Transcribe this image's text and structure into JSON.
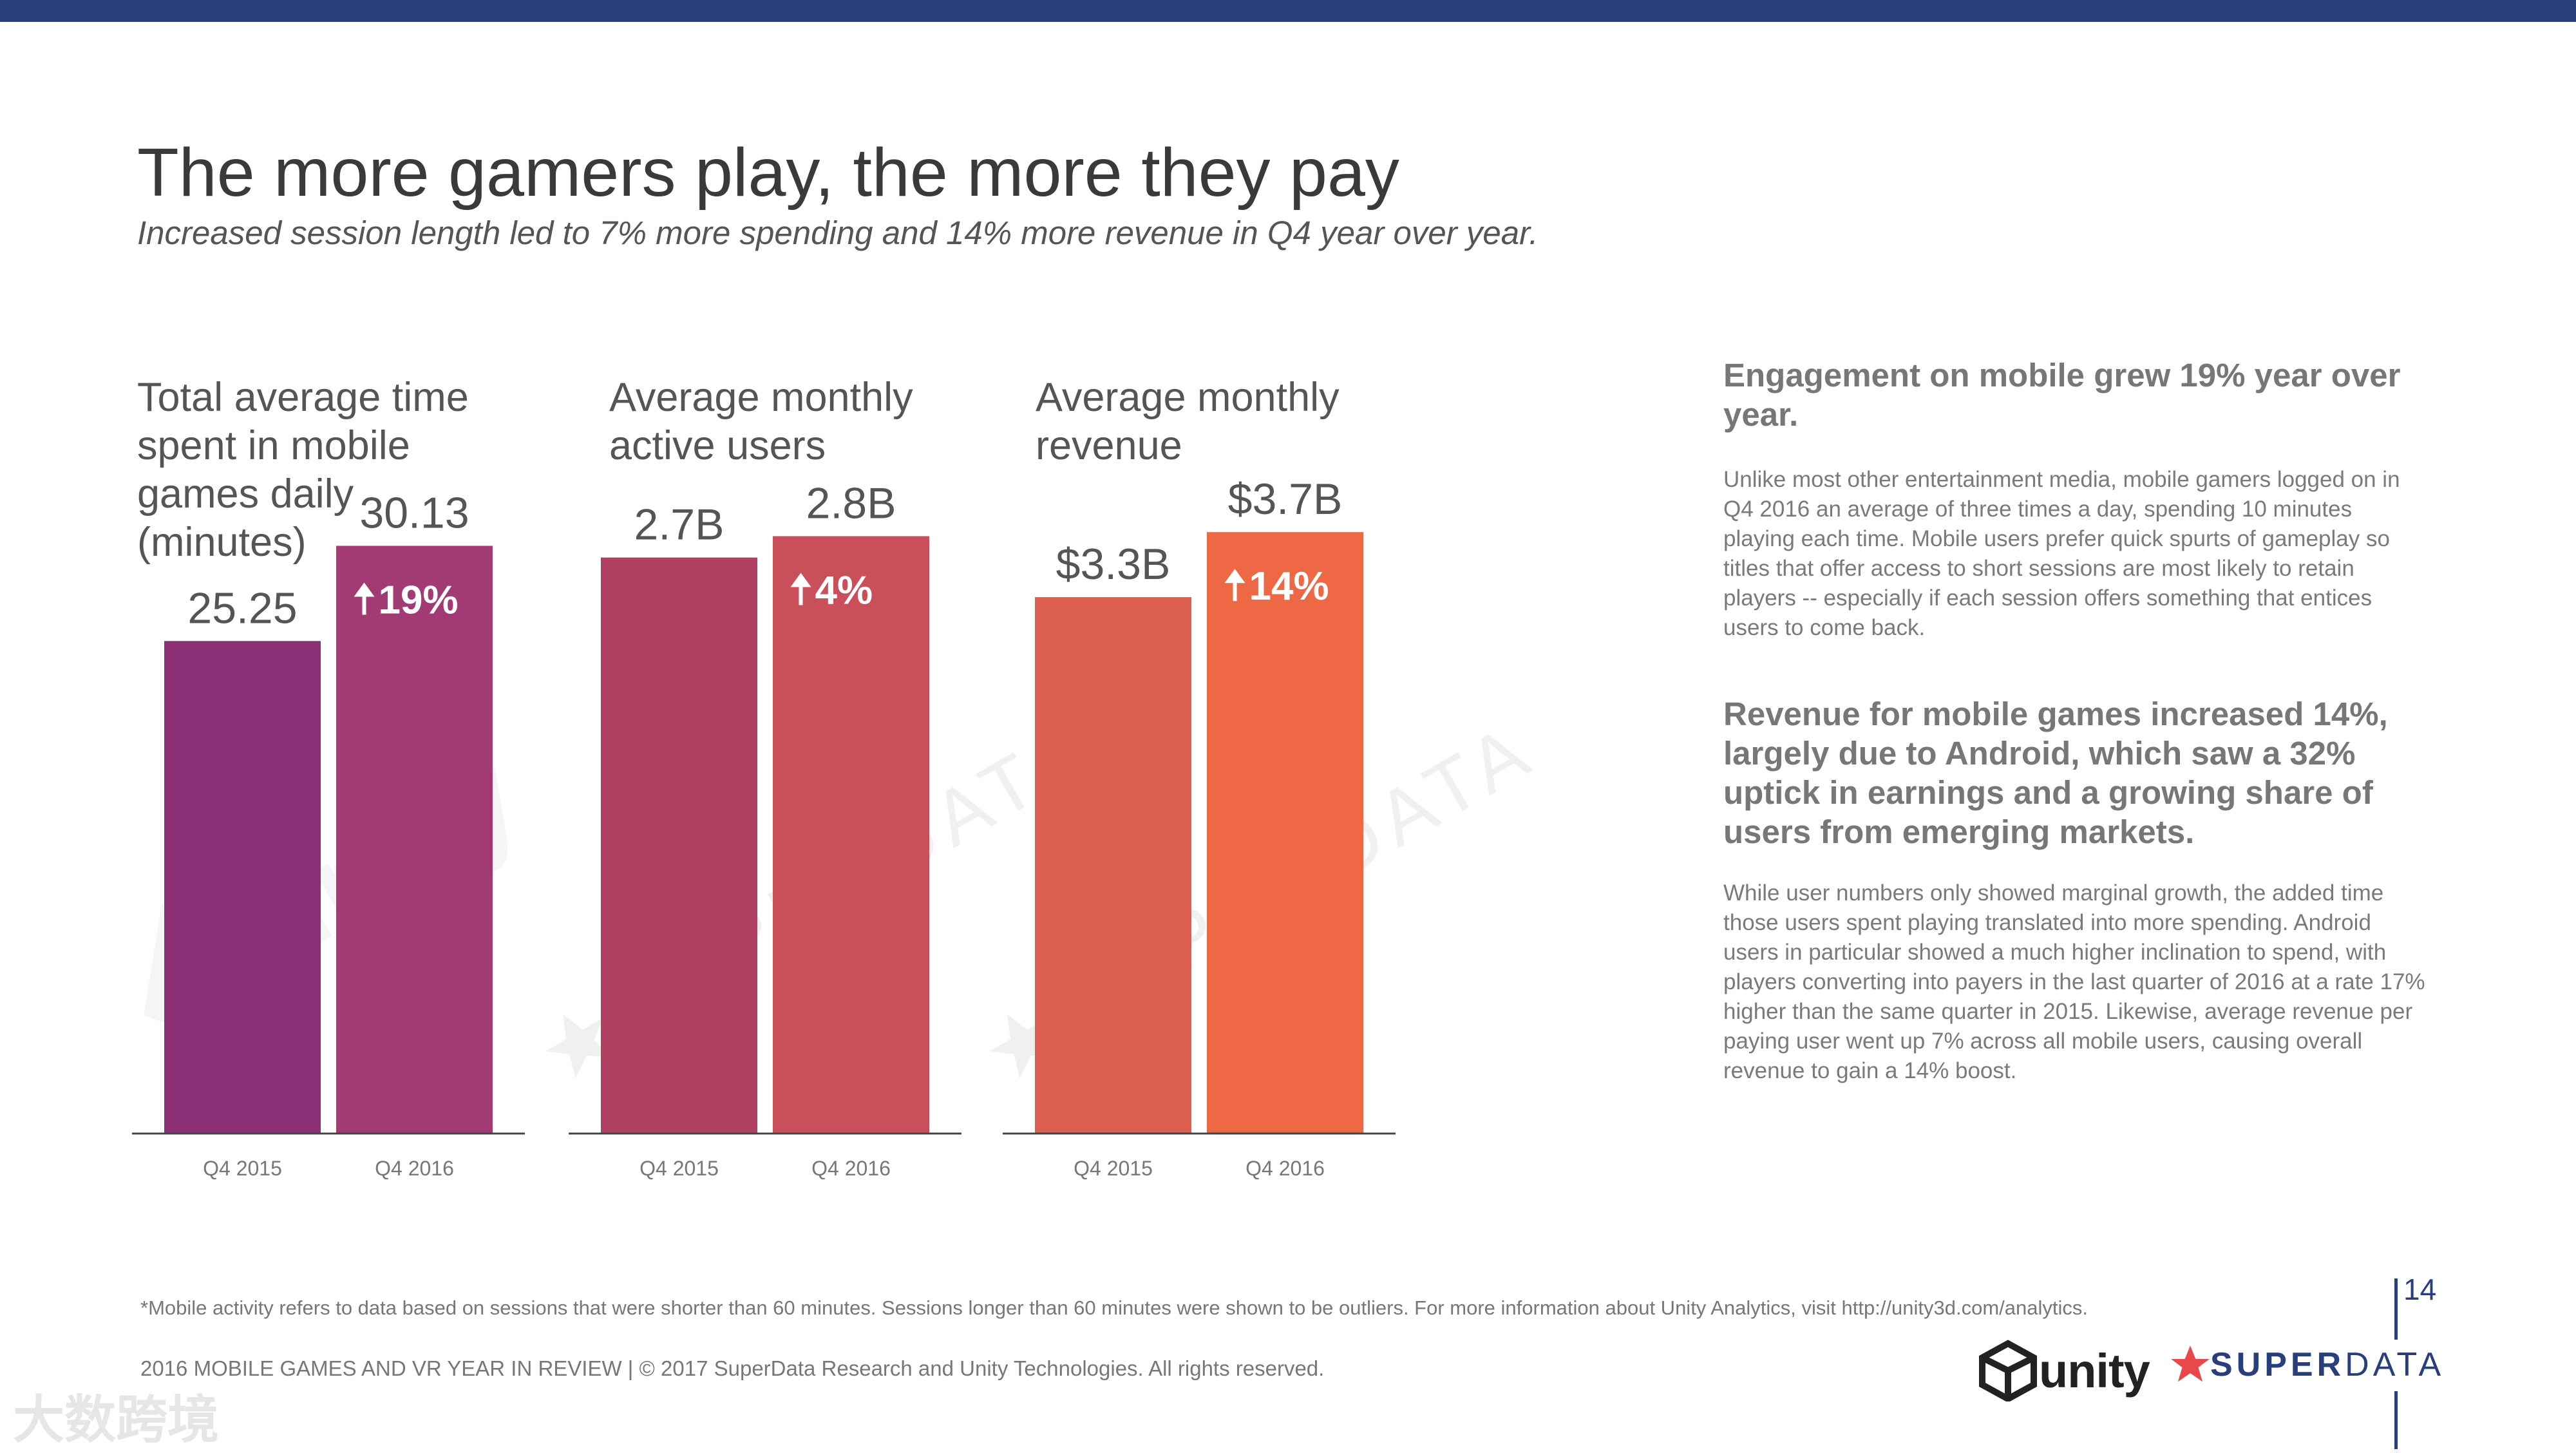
{
  "header": {
    "title": "The more gamers play, the more they pay",
    "subtitle": "Increased session length led to 7% more spending and 14% more revenue in Q4 year over year."
  },
  "chart_data": [
    {
      "type": "bar",
      "title": "Total average time spent in mobile games daily (minutes)",
      "categories": [
        "Q4 2015",
        "Q4 2016"
      ],
      "values": [
        25.25,
        30.13
      ],
      "value_labels": [
        "25.25",
        "30.13"
      ],
      "growth_label": "19%",
      "colors": [
        "#8c3078",
        "#a23a74"
      ],
      "ylim": [
        0,
        35
      ]
    },
    {
      "type": "bar",
      "title": "Average monthly active users",
      "categories": [
        "Q4 2015",
        "Q4 2016"
      ],
      "values": [
        2.7,
        2.8
      ],
      "value_labels": [
        "2.7B",
        "2.8B"
      ],
      "growth_label": "4%",
      "colors": [
        "#b04062",
        "#c9505a"
      ],
      "ylim": [
        0,
        3.2
      ]
    },
    {
      "type": "bar",
      "title": "Average monthly revenue",
      "categories": [
        "Q4 2015",
        "Q4 2016"
      ],
      "values": [
        3.3,
        3.7
      ],
      "value_labels": [
        "$3.3B",
        "$3.7B"
      ],
      "growth_label": "14%",
      "colors": [
        "#dc5e4e",
        "#ee6845"
      ],
      "ylim": [
        0,
        4.2
      ]
    }
  ],
  "sidebar": {
    "heading1": "Engagement on mobile grew 19% year over year.",
    "body1": "Unlike most other entertainment media, mobile gamers logged on in Q4 2016 an average of three times a day, spending 10 minutes playing each time. Mobile users prefer quick spurts of gameplay so titles that offer access to short sessions are most likely to retain players -- especially if each session offers something that entices users to come back.",
    "heading2": "Revenue for mobile games increased 14%, largely due to Android, which saw a 32% uptick in earnings and a growing share of users from emerging markets.",
    "body2": "While user numbers only showed marginal growth, the added time those users spent playing translated into more spending. Android users in particular showed a much higher inclination to spend, with players converting into payers in the last quarter of 2016 at a rate 17% higher than the same quarter in 2015. Likewise, average revenue per paying user went up 7% across all mobile users, causing overall revenue to gain a 14% boost."
  },
  "watermarks": {
    "unity": "unity",
    "superdata": "SUPERDATA",
    "corner": "大数跨境"
  },
  "footer": {
    "footnote": "*Mobile activity refers to data based on sessions that were shorter than 60 minutes. Sessions longer than 60 minutes were shown to be outliers. For more information about Unity Analytics, visit http://unity3d.com/analytics.",
    "copyright": "2016 MOBILE GAMES AND VR YEAR IN REVIEW  |  © 2017 SuperData Research and Unity Technologies. All rights reserved.",
    "page_number": "14",
    "logo_unity": "unity",
    "logo_superdata_a": "SUPER",
    "logo_superdata_b": "DATA"
  },
  "colors": {
    "brand_navy": "#283e7d",
    "sd_star": "#e8474b"
  }
}
